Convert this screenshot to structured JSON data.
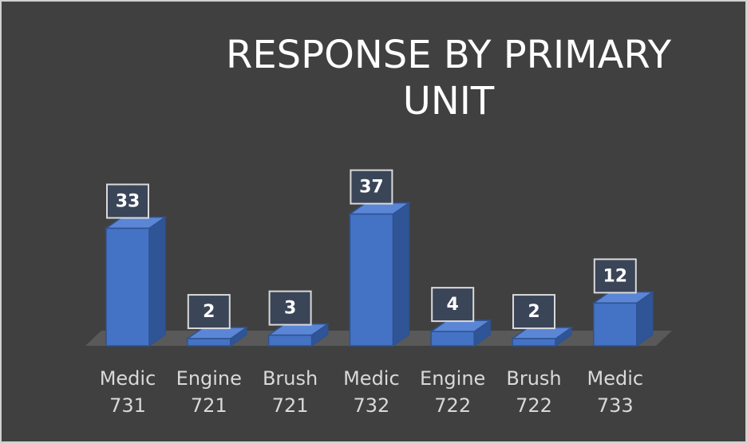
{
  "chart_data": {
    "type": "bar3d",
    "title": "RESPONSE BY PRIMARY UNIT",
    "categories": [
      "Medic 731",
      "Engine 721",
      "Brush 721",
      "Medic 732",
      "Engine 722",
      "Brush 722",
      "Medic 733"
    ],
    "values": [
      33,
      2,
      3,
      37,
      4,
      2,
      12
    ],
    "color": "#4472c4"
  }
}
